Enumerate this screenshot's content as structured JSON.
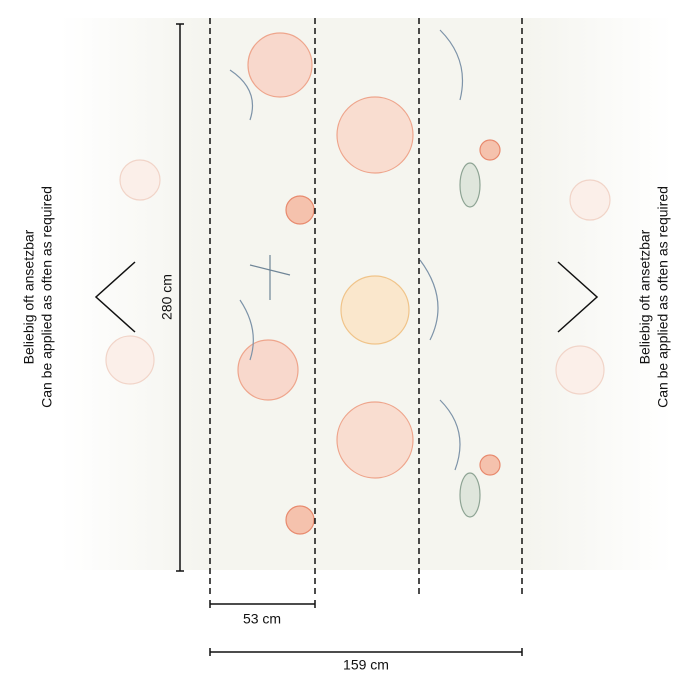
{
  "side_notes": {
    "left": [
      "Beliebig oft ansetzbar",
      "Can be applied as often as required"
    ],
    "right": [
      "Beliebig oft ansetzbar",
      "Can be applied as often as required"
    ]
  },
  "dimensions": {
    "height": "280 cm",
    "panel_width": "53 cm",
    "total_width": "159 cm"
  }
}
